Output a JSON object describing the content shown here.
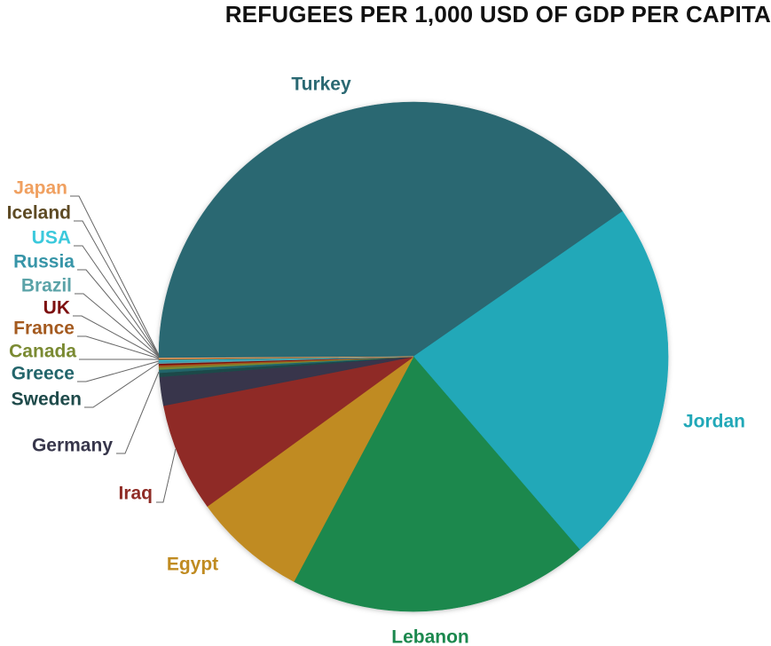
{
  "chart_data": {
    "type": "pie",
    "title": "REFUGEES PER 1,000 USD OF GDP PER CAPITA",
    "series": [
      {
        "name": "Turkey",
        "value": 40.0,
        "color": "#2a6872"
      },
      {
        "name": "Jordan",
        "value": 23.1,
        "color": "#21a8b8"
      },
      {
        "name": "Lebanon",
        "value": 18.9,
        "color": "#1b884e"
      },
      {
        "name": "Egypt",
        "value": 7.15,
        "color": "#c08b21"
      },
      {
        "name": "Iraq",
        "value": 6.85,
        "color": "#8f2c26"
      },
      {
        "name": "Germany",
        "value": 1.8,
        "color": "#37364b"
      },
      {
        "name": "Sweden",
        "value": 0.25,
        "color": "#1e4a4a"
      },
      {
        "name": "Greece",
        "value": 0.2,
        "color": "#23656b"
      },
      {
        "name": "Canada",
        "value": 0.15,
        "color": "#7a8a32"
      },
      {
        "name": "France",
        "value": 0.12,
        "color": "#a45a1f"
      },
      {
        "name": "UK",
        "value": 0.1,
        "color": "#7d0f0f"
      },
      {
        "name": "Brazil",
        "value": 0.08,
        "color": "#5ba3a8"
      },
      {
        "name": "Russia",
        "value": 0.08,
        "color": "#3795a8"
      },
      {
        "name": "USA",
        "value": 0.07,
        "color": "#3cc9dc"
      },
      {
        "name": "Iceland",
        "value": 0.06,
        "color": "#5d4a24"
      },
      {
        "name": "Japan",
        "value": 0.05,
        "color": "#f0a060"
      }
    ],
    "legend": "none"
  }
}
